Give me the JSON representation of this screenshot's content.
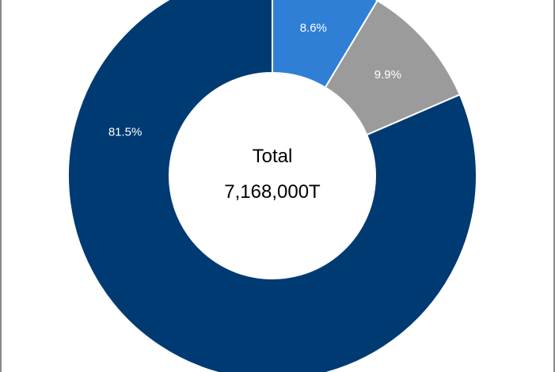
{
  "chart_data": {
    "type": "pie",
    "variant": "donut",
    "slices": [
      {
        "label": "8.6%",
        "value": 8.6,
        "color": "#2f7fd6"
      },
      {
        "label": "9.9%",
        "value": 9.9,
        "color": "#9b9b9b"
      },
      {
        "label": "81.5%",
        "value": 81.5,
        "color": "#003a73"
      }
    ],
    "center_text": {
      "line1": "Total",
      "line2": "7,168,000T"
    },
    "start_angle_deg": 0,
    "direction": "clockwise"
  }
}
